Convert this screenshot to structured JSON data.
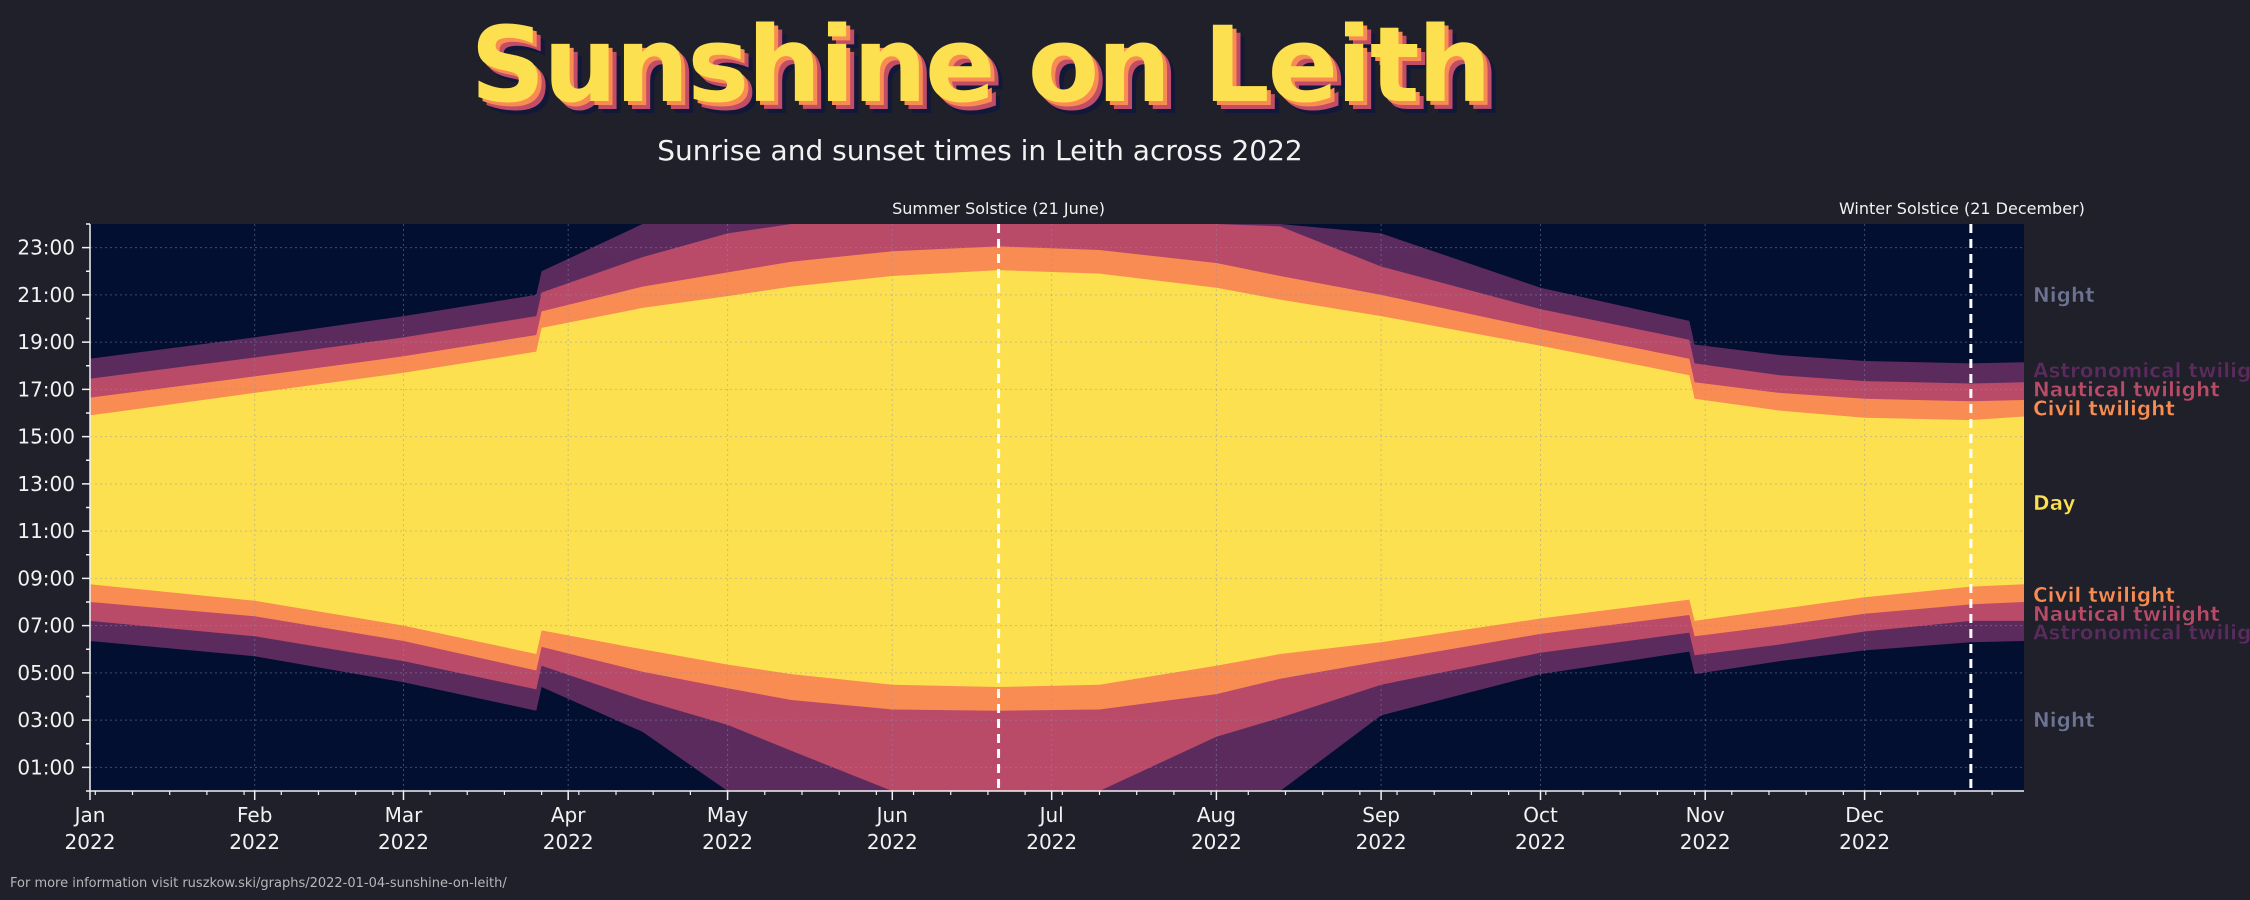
{
  "title": "Sunshine on Leith",
  "subtitle": "Sunrise and sunset times in Leith across 2022",
  "footer": "For more information visit ruszkow.ski/graphs/2022-01-04-sunshine-on-leith/",
  "colors": {
    "background": "#1f2029",
    "night": "#020f31",
    "astronomical": "#5b2b5e",
    "nautical": "#b94a68",
    "civil": "#f98c52",
    "day": "#fde050"
  },
  "chart_data": {
    "type": "area",
    "title": "Sunshine on Leith",
    "subtitle": "Sunrise and sunset times in Leith across 2022",
    "xlabel": "",
    "ylabel": "",
    "x_range": [
      "2022-01-01",
      "2022-12-31"
    ],
    "ylim": [
      0,
      24
    ],
    "y_unit": "hours",
    "grid": true,
    "y_ticks": [
      "01:00",
      "03:00",
      "05:00",
      "07:00",
      "09:00",
      "11:00",
      "13:00",
      "15:00",
      "17:00",
      "19:00",
      "21:00",
      "23:00"
    ],
    "x_ticks": [
      {
        "date": "2022-01-01",
        "label": "Jan",
        "year": "2022"
      },
      {
        "date": "2022-02-01",
        "label": "Feb",
        "year": "2022"
      },
      {
        "date": "2022-03-01",
        "label": "Mar",
        "year": "2022"
      },
      {
        "date": "2022-04-01",
        "label": "Apr",
        "year": "2022"
      },
      {
        "date": "2022-05-01",
        "label": "May",
        "year": "2022"
      },
      {
        "date": "2022-06-01",
        "label": "Jun",
        "year": "2022"
      },
      {
        "date": "2022-07-01",
        "label": "Jul",
        "year": "2022"
      },
      {
        "date": "2022-08-01",
        "label": "Aug",
        "year": "2022"
      },
      {
        "date": "2022-09-01",
        "label": "Sep",
        "year": "2022"
      },
      {
        "date": "2022-10-01",
        "label": "Oct",
        "year": "2022"
      },
      {
        "date": "2022-11-01",
        "label": "Nov",
        "year": "2022"
      },
      {
        "date": "2022-12-01",
        "label": "Dec",
        "year": "2022"
      }
    ],
    "solstices": [
      {
        "date": "2022-06-21",
        "label": "Summer Solstice (21 June)"
      },
      {
        "date": "2022-12-21",
        "label": "Winter Solstice (21 December)"
      }
    ],
    "bands": [
      {
        "key": "night",
        "name": "Night"
      },
      {
        "key": "astronomical",
        "name": "Astronomical twilight"
      },
      {
        "key": "nautical",
        "name": "Nautical twilight"
      },
      {
        "key": "civil",
        "name": "Civil twilight"
      },
      {
        "key": "day",
        "name": "Day"
      }
    ],
    "series_note_dates": [
      "2022-01-01",
      "2022-02-01",
      "2022-03-01",
      "2022-03-26",
      "2022-03-27",
      "2022-04-15",
      "2022-05-01",
      "2022-05-13",
      "2022-06-01",
      "2022-06-21",
      "2022-07-10",
      "2022-08-01",
      "2022-08-13",
      "2022-09-01",
      "2022-10-01",
      "2022-10-29",
      "2022-10-30",
      "2022-11-15",
      "2022-12-01",
      "2022-12-21",
      "2022-12-31"
    ],
    "day_start": [
      8.75,
      8.05,
      7.0,
      5.8,
      6.8,
      6.0,
      5.35,
      4.95,
      4.5,
      4.4,
      4.5,
      5.3,
      5.8,
      6.3,
      7.3,
      8.1,
      7.2,
      7.7,
      8.2,
      8.65,
      8.75
    ],
    "day_end": [
      15.9,
      16.85,
      17.7,
      18.6,
      19.6,
      20.45,
      20.95,
      21.35,
      21.8,
      22.05,
      21.9,
      21.3,
      20.8,
      20.1,
      18.85,
      17.6,
      16.6,
      16.1,
      15.8,
      15.7,
      15.85
    ],
    "civil_start": [
      8.0,
      7.4,
      6.35,
      5.1,
      6.1,
      5.05,
      4.35,
      3.85,
      3.45,
      3.4,
      3.45,
      4.1,
      4.75,
      5.5,
      6.65,
      7.45,
      6.55,
      7.0,
      7.5,
      7.9,
      8.0
    ],
    "civil_end": [
      16.65,
      17.55,
      18.4,
      19.3,
      20.3,
      21.35,
      21.95,
      22.4,
      22.85,
      23.05,
      22.9,
      22.35,
      21.8,
      21.0,
      19.55,
      18.3,
      17.3,
      16.85,
      16.6,
      16.5,
      16.55
    ],
    "nautical_start": [
      7.2,
      6.55,
      5.5,
      4.3,
      5.3,
      3.85,
      2.8,
      1.7,
      0.0,
      0.0,
      0.0,
      2.3,
      3.1,
      4.5,
      5.85,
      6.7,
      5.75,
      6.2,
      6.75,
      7.2,
      7.2
    ],
    "nautical_end": [
      17.45,
      18.35,
      19.2,
      20.1,
      21.1,
      22.6,
      23.6,
      24.0,
      24.0,
      24.0,
      24.0,
      24.0,
      23.9,
      22.2,
      20.4,
      19.1,
      18.1,
      17.6,
      17.35,
      17.25,
      17.3
    ],
    "astro_start": [
      6.35,
      5.7,
      4.6,
      3.4,
      4.4,
      2.5,
      0.0,
      0.0,
      0.0,
      0.0,
      0.0,
      0.0,
      0.0,
      3.2,
      4.95,
      5.9,
      4.95,
      5.5,
      5.95,
      6.3,
      6.35
    ],
    "astro_end": [
      18.3,
      19.2,
      20.1,
      21.0,
      22.0,
      24.0,
      24.0,
      24.0,
      24.0,
      24.0,
      24.0,
      24.0,
      24.0,
      23.6,
      21.3,
      19.9,
      18.9,
      18.45,
      18.2,
      18.1,
      18.15
    ]
  }
}
